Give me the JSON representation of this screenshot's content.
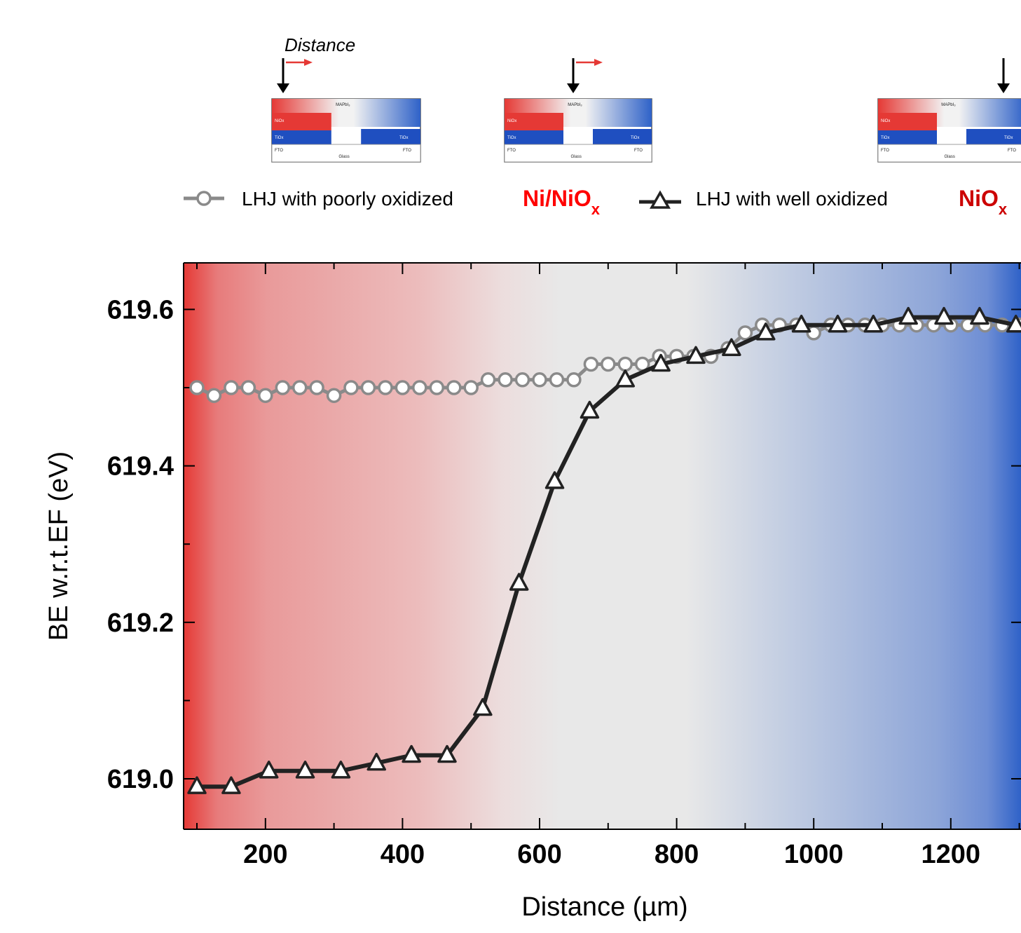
{
  "schematic": {
    "distance_label": "Distance",
    "layers": {
      "top": "MAPbI₃",
      "left_hole": "NiOx",
      "left_electron": "TiOx",
      "right_electron": "TiOx",
      "left_fto": "FTO",
      "center": "Glass",
      "right_fto": "FTO"
    }
  },
  "legend": {
    "series1_text": "LHJ with poorly oxidized",
    "series1_material": "Ni/NiO",
    "series1_sub": "x",
    "series2_text": "LHJ with well oxidized",
    "series2_material": "NiO",
    "series2_sub": "x"
  },
  "colors": {
    "red_region": "#e53935",
    "gray_region": "#e8e8e8",
    "blue_region": "#2f62c8",
    "series1_line": "#8a8a8a",
    "series2_line": "#222222",
    "legend_red": "#ff0000",
    "legend_dark_red": "#cc0000"
  },
  "chart_data": {
    "type": "line",
    "xlabel": "Distance (µm)",
    "ylabel": "BE w.r.t.EF (eV)",
    "xlim": [
      90,
      1300
    ],
    "ylim": [
      618.94,
      619.66
    ],
    "xticks_major": [
      200,
      400,
      600,
      800,
      1000,
      1200
    ],
    "xticks_minor": [
      100,
      300,
      500,
      700,
      900,
      1100,
      1300
    ],
    "yticks_major": [
      619.0,
      619.2,
      619.4,
      619.6
    ],
    "yticks_minor": [
      619.1,
      619.3,
      619.5
    ],
    "ytick_labels": [
      "619.0",
      "619.2",
      "619.4",
      "619.6"
    ],
    "xtick_labels": [
      "200",
      "400",
      "600",
      "800",
      "1000",
      "1200"
    ],
    "series": [
      {
        "name": "LHJ with poorly oxidized Ni/NiOx",
        "marker": "circle",
        "x": [
          100,
          125,
          150,
          175,
          200,
          225,
          250,
          275,
          300,
          325,
          350,
          375,
          400,
          425,
          450,
          475,
          500,
          525,
          550,
          575,
          600,
          625,
          650,
          675,
          700,
          725,
          750,
          775,
          800,
          825,
          850,
          875,
          900,
          925,
          950,
          975,
          1000,
          1025,
          1050,
          1075,
          1100,
          1125,
          1150,
          1175,
          1200,
          1225,
          1250,
          1275,
          1300
        ],
        "y": [
          619.5,
          619.49,
          619.5,
          619.5,
          619.49,
          619.5,
          619.5,
          619.5,
          619.49,
          619.5,
          619.5,
          619.5,
          619.5,
          619.5,
          619.5,
          619.5,
          619.5,
          619.51,
          619.51,
          619.51,
          619.51,
          619.51,
          619.51,
          619.53,
          619.53,
          619.53,
          619.53,
          619.54,
          619.54,
          619.54,
          619.54,
          619.55,
          619.57,
          619.58,
          619.58,
          619.58,
          619.57,
          619.58,
          619.58,
          619.58,
          619.58,
          619.58,
          619.58,
          619.58,
          619.58,
          619.58,
          619.58,
          619.58,
          619.58
        ]
      },
      {
        "name": "LHJ with well oxidized NiOx",
        "marker": "triangle",
        "x": [
          100,
          150,
          205,
          258,
          310,
          362,
          413,
          465,
          517,
          570,
          622,
          673,
          725,
          777,
          828,
          880,
          930,
          982,
          1035,
          1087,
          1138,
          1190,
          1242,
          1295
        ],
        "y": [
          618.99,
          618.99,
          619.01,
          619.01,
          619.01,
          619.02,
          619.03,
          619.03,
          619.09,
          619.25,
          619.38,
          619.47,
          619.51,
          619.53,
          619.54,
          619.55,
          619.57,
          619.58,
          619.58,
          619.58,
          619.59,
          619.59,
          619.59,
          619.58
        ]
      }
    ]
  }
}
